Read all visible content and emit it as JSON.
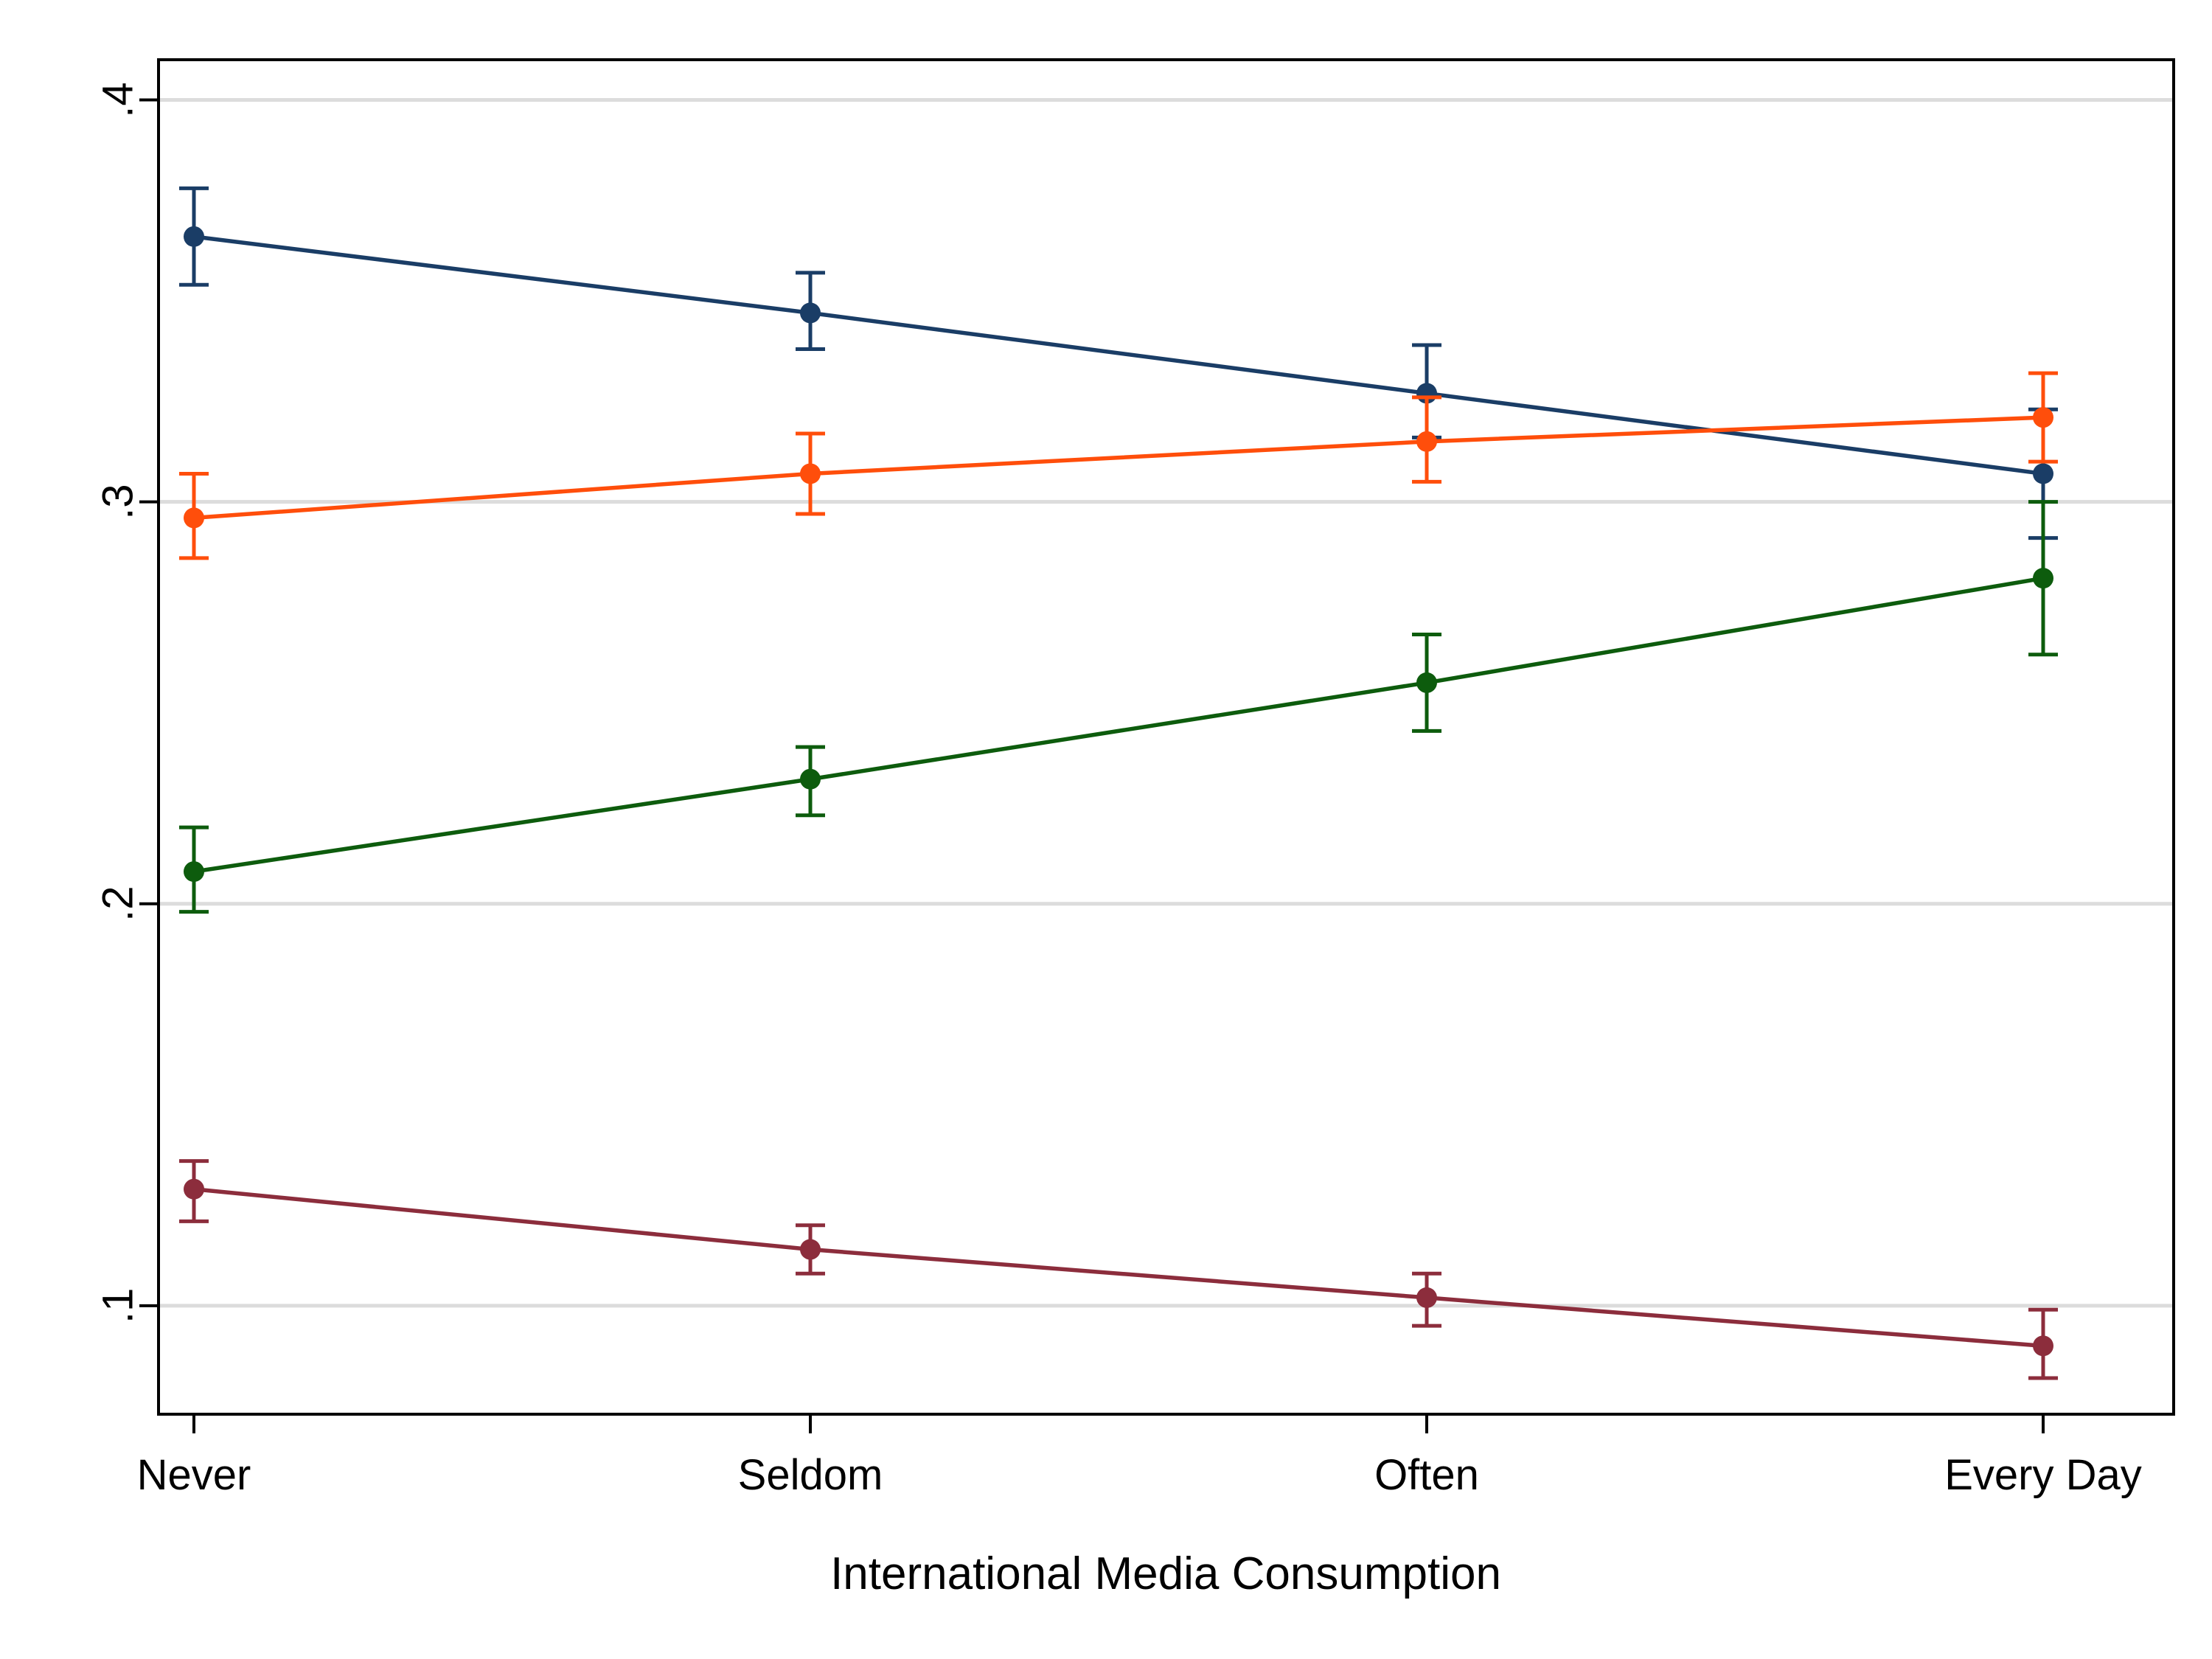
{
  "chart_data": {
    "type": "line",
    "title": "",
    "xlabel": "International Media Consumption",
    "ylabel": "",
    "categories": [
      "Never",
      "Seldom",
      "Often",
      "Every Day"
    ],
    "ylim": [
      0.073,
      0.41
    ],
    "yticks": [
      {
        "value": 0.1,
        "label": ".1"
      },
      {
        "value": 0.2,
        "label": ".2"
      },
      {
        "value": 0.3,
        "label": ".3"
      },
      {
        "value": 0.4,
        "label": ".4"
      }
    ],
    "grid": true,
    "legend": "none",
    "series": [
      {
        "color": "#1a3d66",
        "values": [
          0.366,
          0.347,
          0.327,
          0.307
        ],
        "lower": [
          0.354,
          0.338,
          0.316,
          0.291
        ],
        "upper": [
          0.378,
          0.357,
          0.339,
          0.323
        ]
      },
      {
        "color": "#ff4e0b",
        "values": [
          0.296,
          0.307,
          0.315,
          0.321
        ],
        "lower": [
          0.286,
          0.297,
          0.305,
          0.31
        ],
        "upper": [
          0.307,
          0.317,
          0.326,
          0.332
        ]
      },
      {
        "color": "#0d5c0d",
        "values": [
          0.208,
          0.231,
          0.255,
          0.281
        ],
        "lower": [
          0.198,
          0.222,
          0.243,
          0.262
        ],
        "upper": [
          0.219,
          0.239,
          0.267,
          0.3
        ]
      },
      {
        "color": "#8c2d3c",
        "values": [
          0.129,
          0.114,
          0.102,
          0.09
        ],
        "lower": [
          0.121,
          0.108,
          0.095,
          0.082
        ],
        "upper": [
          0.136,
          0.12,
          0.108,
          0.099
        ]
      }
    ]
  }
}
